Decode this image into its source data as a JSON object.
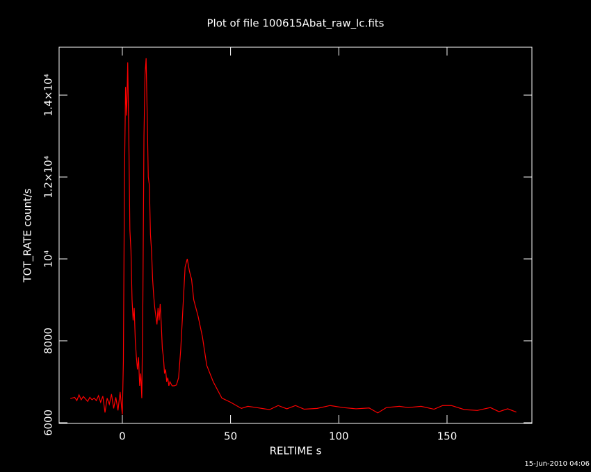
{
  "chart_data": {
    "type": "line",
    "title": "Plot of file 100615Abat_raw_lc.fits",
    "x_label": "RELTIME  s",
    "y_label": "TOT_RATE  count/s",
    "timestamp": "15-Jun-2010 04:06",
    "xlim": [
      -29.2,
      189.2
    ],
    "ylim": [
      5983,
      15170
    ],
    "xticks": [
      0,
      50,
      100,
      150
    ],
    "yticks": [
      6000,
      8000,
      {
        "value": 10000,
        "label": "10⁴"
      },
      {
        "value": 12000,
        "label": "1.2×10⁴"
      },
      {
        "value": 14000,
        "label": "1.4×10⁴"
      }
    ],
    "x": [
      -24,
      -22,
      -21,
      -20,
      -19,
      -18,
      -17,
      -16,
      -15,
      -14,
      -13,
      -12,
      -11,
      -10,
      -9,
      -8,
      -7,
      -6,
      -5,
      -4,
      -3,
      -2,
      -1,
      0,
      0.5,
      1,
      1.5,
      2,
      2.5,
      3,
      3.5,
      4,
      4.5,
      5,
      5.5,
      6,
      6.5,
      7,
      7.5,
      8,
      8.5,
      9,
      9.5,
      10,
      10.5,
      11,
      11.5,
      12,
      12.5,
      13,
      13.5,
      14,
      14.5,
      15,
      15.5,
      16,
      16.5,
      17,
      17.5,
      18,
      18.5,
      19,
      19.5,
      20,
      20.5,
      21,
      21.5,
      22,
      23,
      24,
      25,
      26,
      27,
      28,
      29,
      30,
      31,
      32,
      33,
      35,
      37,
      39,
      42,
      46,
      50,
      55,
      58,
      62,
      68,
      72,
      76,
      80,
      84,
      90,
      96,
      102,
      108,
      114,
      118,
      122,
      128,
      132,
      138,
      144,
      148,
      152,
      158,
      164,
      170,
      174,
      178,
      182
    ],
    "series": [
      {
        "name": "TOT_RATE",
        "color": "#ff0000",
        "values": [
          6590,
          6620,
          6540,
          6680,
          6560,
          6640,
          6580,
          6520,
          6620,
          6560,
          6600,
          6540,
          6660,
          6500,
          6650,
          6250,
          6600,
          6450,
          6700,
          6350,
          6620,
          6300,
          6750,
          6200,
          7500,
          12000,
          14200,
          13500,
          14800,
          13000,
          10700,
          10200,
          9000,
          8500,
          8800,
          8000,
          7600,
          7300,
          7600,
          6900,
          7200,
          6600,
          9000,
          13000,
          14500,
          14900,
          13500,
          12000,
          11800,
          10600,
          10200,
          9500,
          9100,
          8800,
          8600,
          8400,
          8800,
          8500,
          8900,
          8400,
          7800,
          7600,
          7200,
          7300,
          7000,
          7100,
          6900,
          7000,
          6900,
          6900,
          6920,
          7100,
          7800,
          8800,
          9800,
          10000,
          9700,
          9500,
          9000,
          8600,
          8100,
          7400,
          7000,
          6600,
          6500,
          6350,
          6400,
          6370,
          6320,
          6420,
          6340,
          6420,
          6330,
          6350,
          6420,
          6370,
          6340,
          6360,
          6240,
          6370,
          6400,
          6370,
          6400,
          6330,
          6420,
          6420,
          6320,
          6300,
          6370,
          6270,
          6340,
          6260
        ]
      }
    ]
  }
}
